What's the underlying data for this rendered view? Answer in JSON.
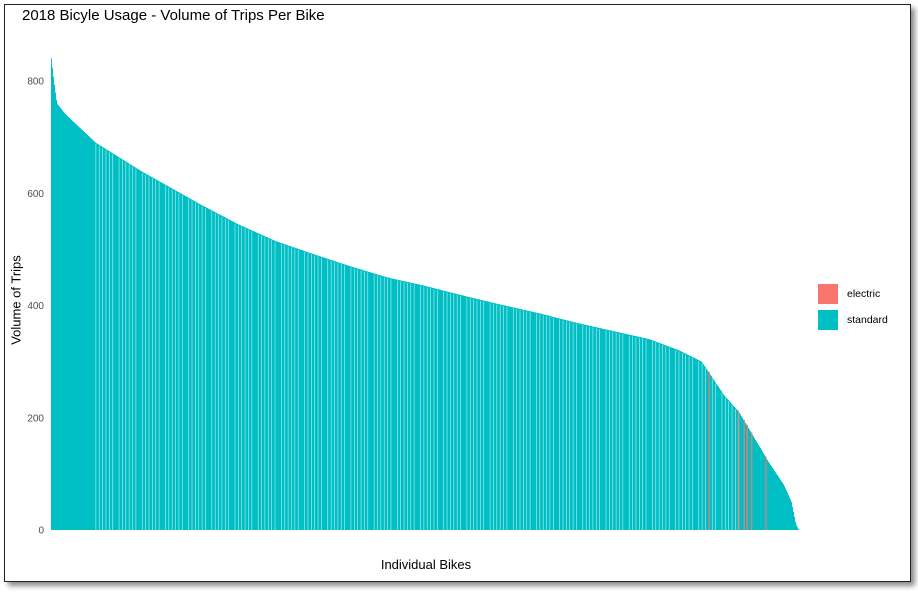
{
  "chart_data": {
    "type": "bar",
    "title": "2018 Bicyle Usage - Volume of Trips Per Bike",
    "xlabel": "Individual Bikes",
    "ylabel": "Volume of Trips",
    "ylim": [
      0,
      850
    ],
    "y_ticks": [
      "0",
      "200",
      "400",
      "600",
      "800"
    ],
    "legend_position": "right",
    "grid": false,
    "series": [
      {
        "name": "electric",
        "color": "#F8766D"
      },
      {
        "name": "standard",
        "color": "#00BFC4"
      }
    ],
    "distribution": {
      "description_points": [
        [
          0,
          848
        ],
        [
          0.004,
          800
        ],
        [
          0.008,
          760
        ],
        [
          0.02,
          740
        ],
        [
          0.04,
          715
        ],
        [
          0.06,
          690
        ],
        [
          0.09,
          665
        ],
        [
          0.12,
          640
        ],
        [
          0.16,
          610
        ],
        [
          0.2,
          580
        ],
        [
          0.25,
          545
        ],
        [
          0.3,
          515
        ],
        [
          0.35,
          492
        ],
        [
          0.4,
          470
        ],
        [
          0.45,
          450
        ],
        [
          0.5,
          435
        ],
        [
          0.55,
          418
        ],
        [
          0.6,
          402
        ],
        [
          0.65,
          387
        ],
        [
          0.7,
          370
        ],
        [
          0.75,
          355
        ],
        [
          0.8,
          340
        ],
        [
          0.84,
          320
        ],
        [
          0.87,
          300
        ],
        [
          0.885,
          270
        ],
        [
          0.9,
          240
        ],
        [
          0.92,
          210
        ],
        [
          0.94,
          165
        ],
        [
          0.96,
          120
        ],
        [
          0.98,
          80
        ],
        [
          0.99,
          50
        ],
        [
          0.996,
          10
        ],
        [
          1,
          0
        ]
      ],
      "electric_positions": [
        0.879,
        0.918,
        0.926,
        0.93,
        0.936,
        0.955
      ]
    },
    "values_note": ""
  }
}
